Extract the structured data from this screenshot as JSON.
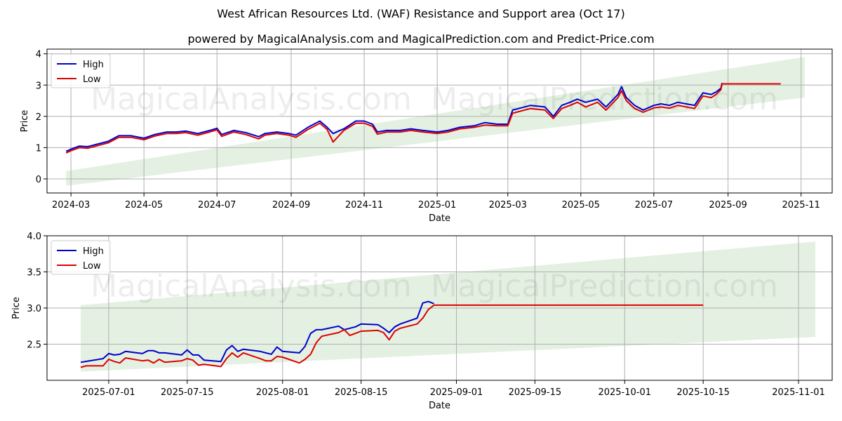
{
  "header": {
    "title": "West African Resources Ltd. (WAF) Resistance and Support area (Oct 17)",
    "subtitle": "powered by MagicalAnalysis.com and MagicalPrediction.com and Predict-Price.com"
  },
  "watermarks": [
    "MagicalAnalysis.com",
    "MagicalPrediction.com"
  ],
  "colors": {
    "high": "#0000cc",
    "low": "#dd0000",
    "band": "#d8ebd5",
    "grid": "#b0b0b0"
  },
  "chart_data": [
    {
      "type": "line",
      "xlabel": "Date",
      "ylabel": "Price",
      "xlim": [
        "2024-02-10",
        "2025-11-27"
      ],
      "ylim": [
        -0.45,
        4.15
      ],
      "x_ticks": [
        "2024-03-01",
        "2024-05-01",
        "2024-07-01",
        "2024-09-01",
        "2024-11-01",
        "2025-01-01",
        "2025-03-01",
        "2025-05-01",
        "2025-07-01",
        "2025-09-01",
        "2025-11-01"
      ],
      "x_tick_labels": [
        "2024-03",
        "2024-05",
        "2024-07",
        "2024-09",
        "2024-11",
        "2025-01",
        "2025-03",
        "2025-05",
        "2025-07",
        "2025-09",
        "2025-11"
      ],
      "y_ticks": [
        0,
        1,
        2,
        3,
        4
      ],
      "y_tick_labels": [
        "0",
        "1",
        "2",
        "3",
        "4"
      ],
      "grid": true,
      "legend": "upper left",
      "support_band": {
        "x": [
          "2024-02-26",
          "2025-11-04"
        ],
        "lower": [
          -0.22,
          2.6
        ],
        "upper": [
          0.25,
          3.9
        ]
      },
      "series": [
        {
          "name": "High",
          "x": [
            "2024-02-26",
            "2024-03-01",
            "2024-03-08",
            "2024-03-15",
            "2024-03-22",
            "2024-04-01",
            "2024-04-10",
            "2024-04-20",
            "2024-05-01",
            "2024-05-10",
            "2024-05-20",
            "2024-05-28",
            "2024-06-05",
            "2024-06-15",
            "2024-06-25",
            "2024-07-01",
            "2024-07-05",
            "2024-07-15",
            "2024-07-25",
            "2024-08-05",
            "2024-08-10",
            "2024-08-20",
            "2024-08-30",
            "2024-09-05",
            "2024-09-15",
            "2024-09-25",
            "2024-10-01",
            "2024-10-06",
            "2024-10-15",
            "2024-10-25",
            "2024-11-01",
            "2024-11-08",
            "2024-11-12",
            "2024-11-20",
            "2024-12-01",
            "2024-12-10",
            "2024-12-20",
            "2025-01-01",
            "2025-01-10",
            "2025-01-20",
            "2025-02-01",
            "2025-02-10",
            "2025-02-20",
            "2025-03-01",
            "2025-03-05",
            "2025-03-10",
            "2025-03-20",
            "2025-04-01",
            "2025-04-08",
            "2025-04-15",
            "2025-04-22",
            "2025-04-28",
            "2025-05-05",
            "2025-05-15",
            "2025-05-22",
            "2025-06-01",
            "2025-06-04",
            "2025-06-08",
            "2025-06-15",
            "2025-06-22",
            "2025-06-28",
            "2025-07-01",
            "2025-07-07",
            "2025-07-14",
            "2025-07-21",
            "2025-07-28",
            "2025-08-04",
            "2025-08-11",
            "2025-08-18",
            "2025-08-22",
            "2025-08-26",
            "2025-08-27"
          ],
          "y": [
            0.88,
            0.95,
            1.05,
            1.03,
            1.1,
            1.2,
            1.38,
            1.38,
            1.3,
            1.42,
            1.5,
            1.5,
            1.53,
            1.45,
            1.55,
            1.62,
            1.42,
            1.55,
            1.48,
            1.35,
            1.45,
            1.5,
            1.45,
            1.4,
            1.65,
            1.85,
            1.65,
            1.45,
            1.6,
            1.85,
            1.85,
            1.75,
            1.5,
            1.55,
            1.55,
            1.6,
            1.55,
            1.5,
            1.55,
            1.65,
            1.7,
            1.8,
            1.75,
            1.75,
            2.2,
            2.25,
            2.35,
            2.3,
            2.0,
            2.35,
            2.45,
            2.55,
            2.45,
            2.55,
            2.3,
            2.7,
            2.95,
            2.6,
            2.35,
            2.2,
            2.3,
            2.35,
            2.4,
            2.35,
            2.45,
            2.4,
            2.35,
            2.75,
            2.7,
            2.78,
            2.9,
            3.07
          ]
        },
        {
          "name": "Low",
          "x": [
            "2024-02-26",
            "2024-03-01",
            "2024-03-08",
            "2024-03-15",
            "2024-03-22",
            "2024-04-01",
            "2024-04-10",
            "2024-04-20",
            "2024-05-01",
            "2024-05-10",
            "2024-05-20",
            "2024-05-28",
            "2024-06-05",
            "2024-06-15",
            "2024-06-25",
            "2024-07-01",
            "2024-07-05",
            "2024-07-15",
            "2024-07-25",
            "2024-08-05",
            "2024-08-10",
            "2024-08-20",
            "2024-08-30",
            "2024-09-05",
            "2024-09-15",
            "2024-09-25",
            "2024-10-01",
            "2024-10-06",
            "2024-10-15",
            "2024-10-25",
            "2024-11-01",
            "2024-11-08",
            "2024-11-12",
            "2024-11-20",
            "2024-12-01",
            "2024-12-10",
            "2024-12-20",
            "2025-01-01",
            "2025-01-10",
            "2025-01-20",
            "2025-02-01",
            "2025-02-10",
            "2025-02-20",
            "2025-03-01",
            "2025-03-05",
            "2025-03-10",
            "2025-03-20",
            "2025-04-01",
            "2025-04-08",
            "2025-04-15",
            "2025-04-22",
            "2025-04-28",
            "2025-05-05",
            "2025-05-15",
            "2025-05-22",
            "2025-06-01",
            "2025-06-04",
            "2025-06-08",
            "2025-06-15",
            "2025-06-22",
            "2025-06-28",
            "2025-07-01",
            "2025-07-07",
            "2025-07-14",
            "2025-07-21",
            "2025-07-28",
            "2025-08-04",
            "2025-08-11",
            "2025-08-18",
            "2025-08-22",
            "2025-08-26",
            "2025-08-27",
            "2025-10-15"
          ],
          "y": [
            0.83,
            0.9,
            1.0,
            0.98,
            1.05,
            1.15,
            1.33,
            1.33,
            1.25,
            1.37,
            1.45,
            1.45,
            1.48,
            1.4,
            1.5,
            1.57,
            1.36,
            1.5,
            1.42,
            1.28,
            1.4,
            1.45,
            1.4,
            1.33,
            1.58,
            1.78,
            1.58,
            1.18,
            1.55,
            1.78,
            1.78,
            1.68,
            1.43,
            1.5,
            1.5,
            1.55,
            1.5,
            1.45,
            1.5,
            1.6,
            1.65,
            1.72,
            1.7,
            1.7,
            2.1,
            2.15,
            2.25,
            2.2,
            1.93,
            2.25,
            2.35,
            2.45,
            2.3,
            2.45,
            2.2,
            2.6,
            2.82,
            2.5,
            2.25,
            2.13,
            2.22,
            2.27,
            2.3,
            2.26,
            2.35,
            2.3,
            2.25,
            2.65,
            2.6,
            2.7,
            2.85,
            3.04,
            3.04
          ]
        }
      ]
    },
    {
      "type": "line",
      "xlabel": "Date",
      "ylabel": "Price",
      "xlim": [
        "2025-06-20",
        "2025-11-07"
      ],
      "ylim": [
        2.0,
        4.0
      ],
      "x_ticks": [
        "2025-07-01",
        "2025-07-15",
        "2025-08-01",
        "2025-08-15",
        "2025-09-01",
        "2025-09-15",
        "2025-10-01",
        "2025-10-15",
        "2025-11-01"
      ],
      "x_tick_labels": [
        "2025-07-01",
        "2025-07-15",
        "2025-08-01",
        "2025-08-15",
        "2025-09-01",
        "2025-09-15",
        "2025-10-01",
        "2025-10-15",
        "2025-11-01"
      ],
      "y_ticks": [
        2.5,
        3.0,
        3.5,
        4.0
      ],
      "y_tick_labels": [
        "2.5",
        "3.0",
        "3.5",
        "4.0"
      ],
      "grid": true,
      "legend": "upper left",
      "support_band": {
        "x": [
          "2025-06-26",
          "2025-11-04"
        ],
        "lower": [
          2.12,
          2.6
        ],
        "upper": [
          3.04,
          3.92
        ]
      },
      "series": [
        {
          "name": "High",
          "x": [
            "2025-06-26",
            "2025-06-30",
            "2025-07-01",
            "2025-07-02",
            "2025-07-03",
            "2025-07-04",
            "2025-07-07",
            "2025-07-08",
            "2025-07-09",
            "2025-07-10",
            "2025-07-11",
            "2025-07-14",
            "2025-07-15",
            "2025-07-16",
            "2025-07-17",
            "2025-07-18",
            "2025-07-21",
            "2025-07-22",
            "2025-07-23",
            "2025-07-24",
            "2025-07-25",
            "2025-07-28",
            "2025-07-29",
            "2025-07-30",
            "2025-07-31",
            "2025-08-01",
            "2025-08-04",
            "2025-08-05",
            "2025-08-06",
            "2025-08-07",
            "2025-08-08",
            "2025-08-11",
            "2025-08-12",
            "2025-08-13",
            "2025-08-14",
            "2025-08-15",
            "2025-08-18",
            "2025-08-19",
            "2025-08-20",
            "2025-08-21",
            "2025-08-22",
            "2025-08-25",
            "2025-08-26",
            "2025-08-27",
            "2025-08-28"
          ],
          "y": [
            2.25,
            2.3,
            2.37,
            2.35,
            2.36,
            2.4,
            2.37,
            2.41,
            2.41,
            2.38,
            2.38,
            2.35,
            2.42,
            2.35,
            2.35,
            2.28,
            2.26,
            2.42,
            2.48,
            2.4,
            2.43,
            2.4,
            2.38,
            2.36,
            2.46,
            2.4,
            2.38,
            2.47,
            2.65,
            2.7,
            2.7,
            2.75,
            2.7,
            2.72,
            2.74,
            2.78,
            2.77,
            2.72,
            2.66,
            2.74,
            2.78,
            2.86,
            3.07,
            3.09,
            3.06
          ]
        },
        {
          "name": "Low",
          "x": [
            "2025-06-26",
            "2025-06-27",
            "2025-06-30",
            "2025-07-01",
            "2025-07-02",
            "2025-07-03",
            "2025-07-04",
            "2025-07-07",
            "2025-07-08",
            "2025-07-09",
            "2025-07-10",
            "2025-07-11",
            "2025-07-14",
            "2025-07-15",
            "2025-07-16",
            "2025-07-17",
            "2025-07-18",
            "2025-07-21",
            "2025-07-22",
            "2025-07-23",
            "2025-07-24",
            "2025-07-25",
            "2025-07-28",
            "2025-07-29",
            "2025-07-30",
            "2025-07-31",
            "2025-08-01",
            "2025-08-04",
            "2025-08-05",
            "2025-08-06",
            "2025-08-07",
            "2025-08-08",
            "2025-08-11",
            "2025-08-12",
            "2025-08-13",
            "2025-08-14",
            "2025-08-15",
            "2025-08-18",
            "2025-08-19",
            "2025-08-20",
            "2025-08-21",
            "2025-08-22",
            "2025-08-25",
            "2025-08-26",
            "2025-08-27",
            "2025-08-28",
            "2025-10-15"
          ],
          "y": [
            2.18,
            2.2,
            2.2,
            2.29,
            2.26,
            2.24,
            2.31,
            2.27,
            2.28,
            2.24,
            2.29,
            2.25,
            2.27,
            2.3,
            2.28,
            2.21,
            2.22,
            2.19,
            2.3,
            2.38,
            2.32,
            2.38,
            2.3,
            2.27,
            2.27,
            2.33,
            2.32,
            2.24,
            2.29,
            2.36,
            2.52,
            2.61,
            2.66,
            2.7,
            2.62,
            2.65,
            2.68,
            2.69,
            2.66,
            2.56,
            2.68,
            2.72,
            2.78,
            2.86,
            2.98,
            3.04,
            3.04
          ]
        }
      ]
    }
  ]
}
